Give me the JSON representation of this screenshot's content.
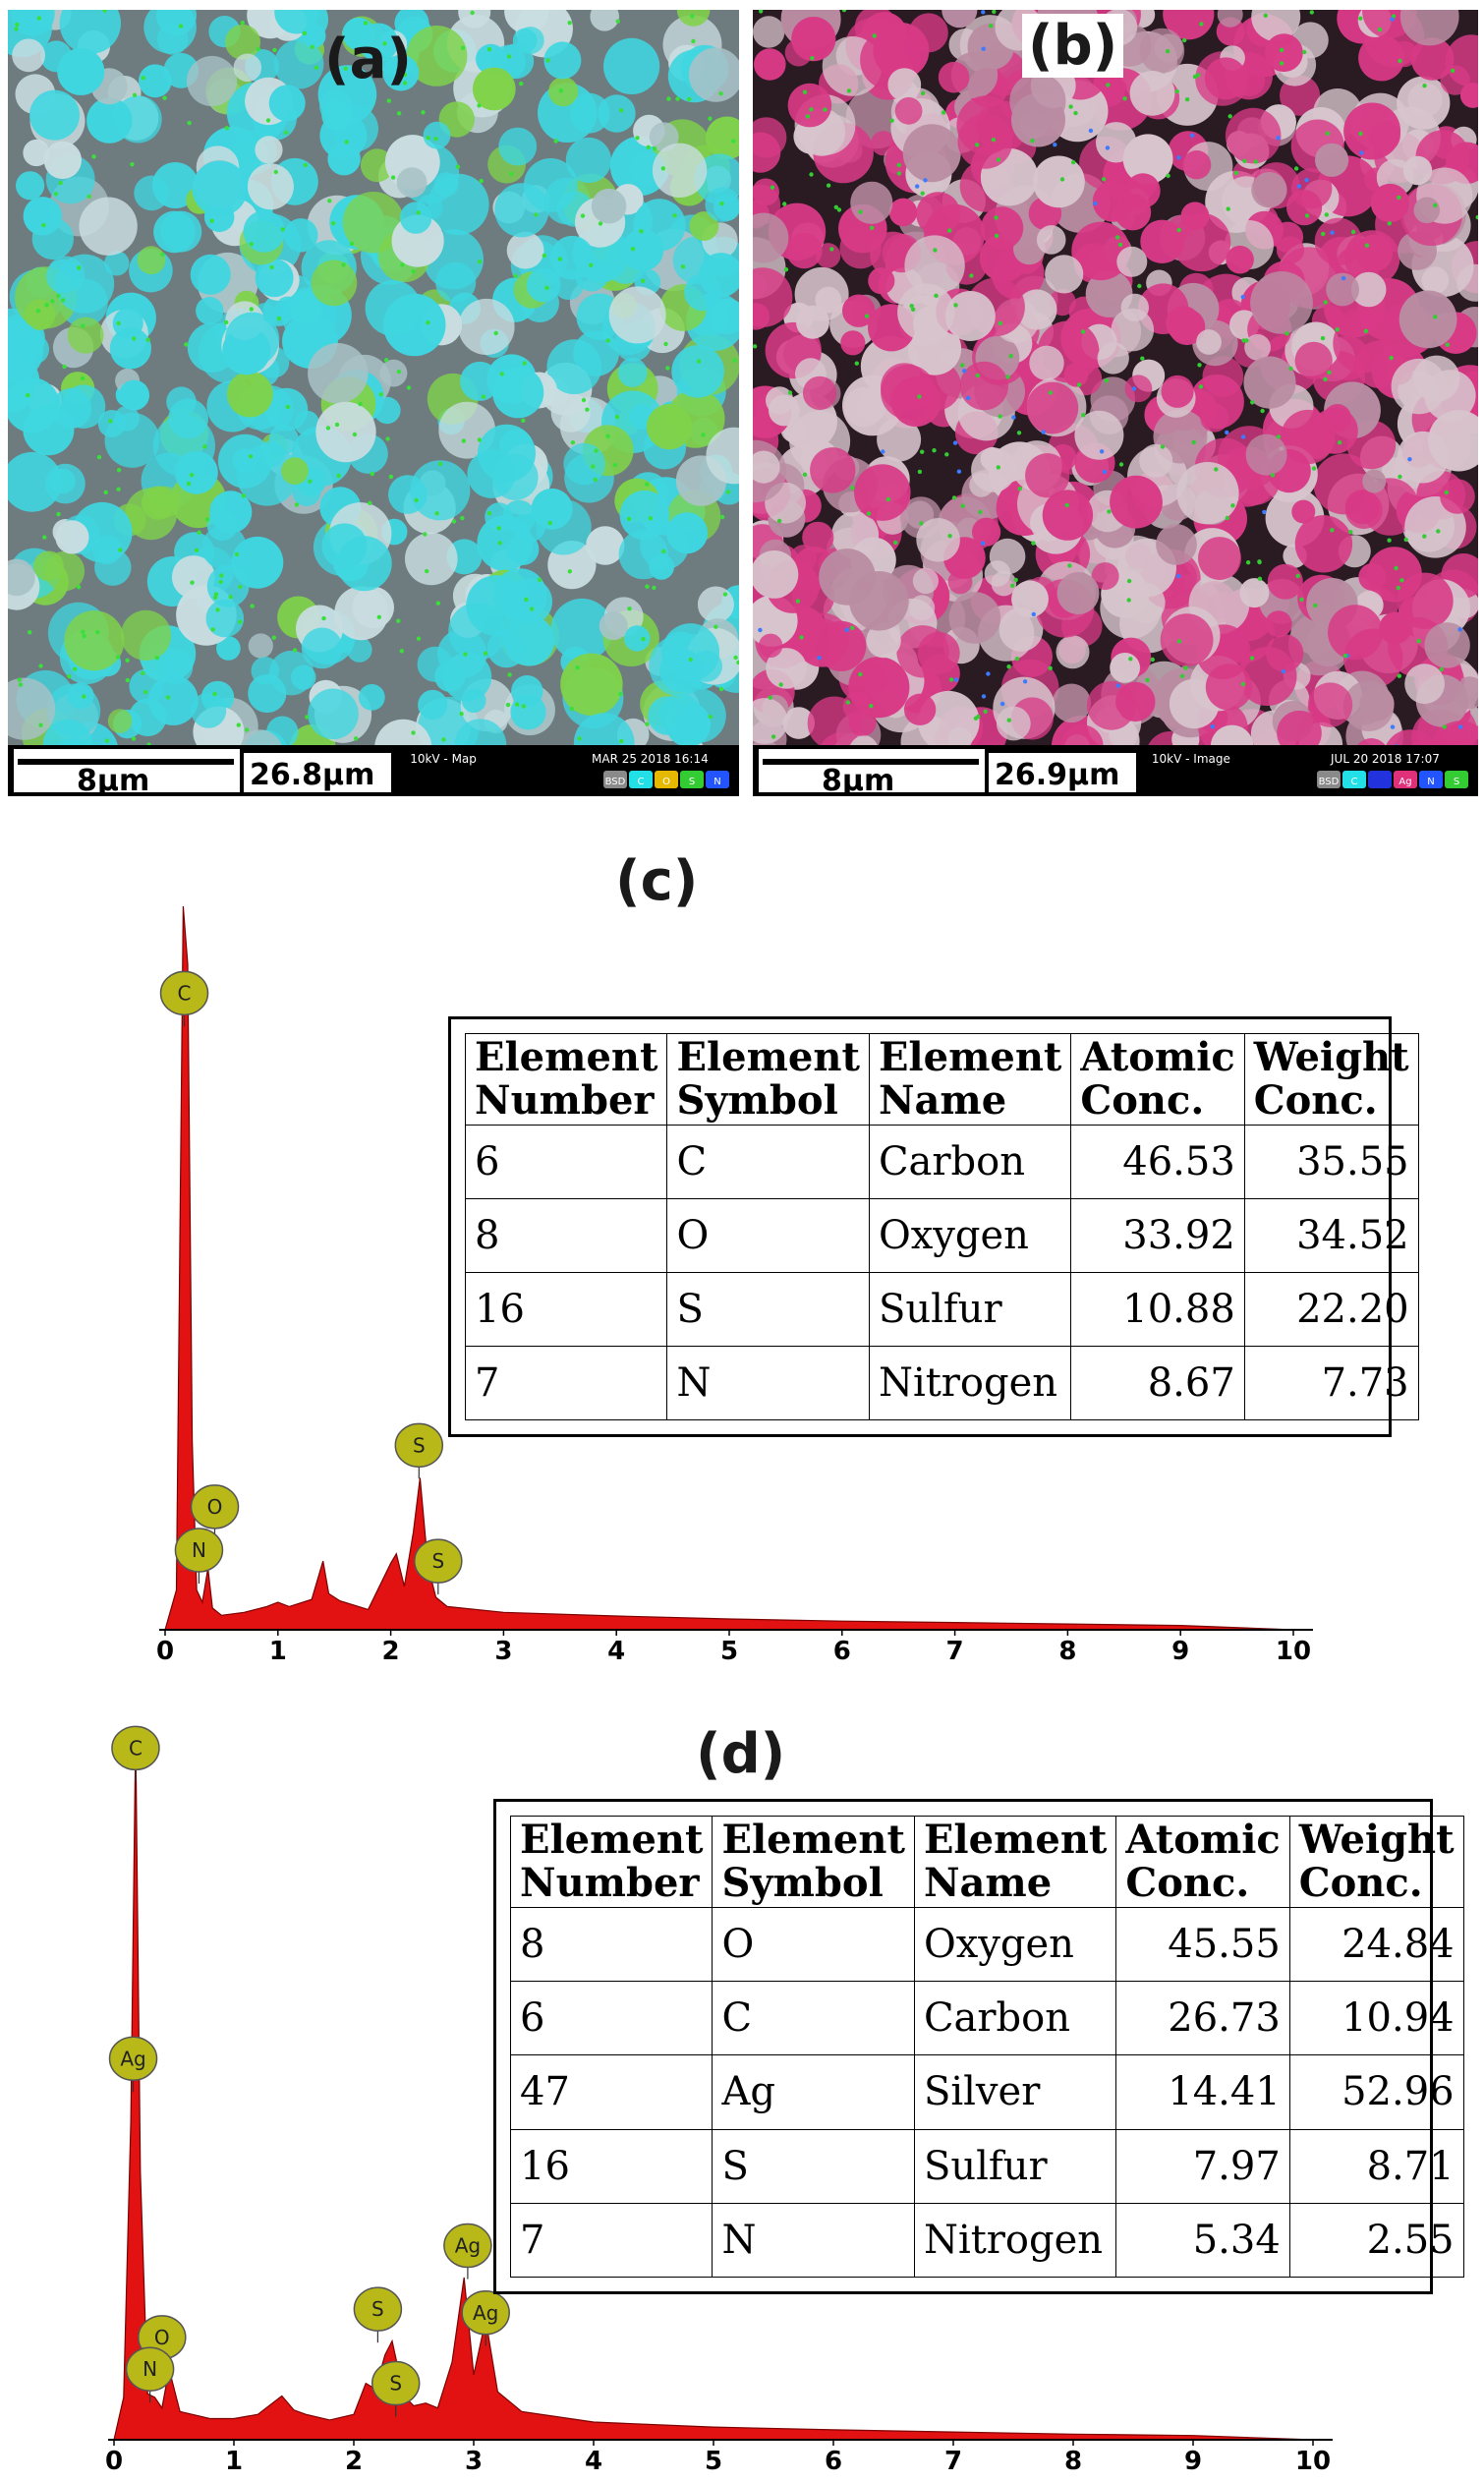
{
  "panels": {
    "a": {
      "letter": "(a)",
      "scale_bar": "8µm",
      "field_width": "26.8µm",
      "mode": "10kV - Map",
      "date": "MAR 25 2018 16:14",
      "legend": [
        "BSD",
        "C",
        "O",
        "S",
        "N"
      ],
      "legend_colors": [
        "#8a8a8a",
        "#22e0e6",
        "#e6b800",
        "#33cc33",
        "#2255ff"
      ]
    },
    "b": {
      "letter": "(b)",
      "scale_bar": "8µm",
      "field_width": "26.9µm",
      "mode": "10kV - Image",
      "date": "JUL 20 2018 17:07",
      "legend": [
        "BSD",
        "C",
        "",
        "Ag",
        "N",
        "S"
      ],
      "legend_colors": [
        "#8a8a8a",
        "#22e0e6",
        "#2233dd",
        "#e0307a",
        "#2255ff",
        "#33cc33"
      ]
    },
    "c": {
      "letter": "(c)"
    },
    "d": {
      "letter": "(d)"
    }
  },
  "colors": {
    "spectrum_fill": "#e31212",
    "peak_marker": "#b8b818",
    "map_a_cyan": "#3fd6e0",
    "map_b_magenta": "#d83a86"
  },
  "chart_data": [
    {
      "type": "area",
      "panel": "(c)",
      "xlim": [
        0,
        10
      ],
      "x_ticks": [
        0,
        1,
        2,
        3,
        4,
        5,
        6,
        7,
        8,
        9,
        10
      ],
      "x": [
        0,
        0.1,
        0.16,
        0.2,
        0.24,
        0.28,
        0.33,
        0.38,
        0.42,
        0.5,
        0.7,
        0.9,
        1.0,
        1.1,
        1.3,
        1.4,
        1.45,
        1.55,
        1.8,
        2.0,
        2.05,
        2.12,
        2.2,
        2.26,
        2.33,
        2.4,
        2.5,
        3.0,
        4.0,
        5.0,
        6.0,
        7.0,
        8.0,
        9.0,
        10.0
      ],
      "y": [
        0,
        55,
        1000,
        920,
        260,
        55,
        38,
        85,
        30,
        20,
        24,
        32,
        38,
        32,
        42,
        95,
        50,
        40,
        28,
        92,
        105,
        60,
        135,
        210,
        88,
        45,
        32,
        24,
        19,
        15,
        12,
        10,
        8,
        6,
        0
      ],
      "peak_labels": [
        {
          "label": "C",
          "x": 0.17,
          "y": 880
        },
        {
          "label": "O",
          "x": 0.44,
          "y": 170
        },
        {
          "label": "N",
          "x": 0.3,
          "y": 110
        },
        {
          "label": "S",
          "x": 2.25,
          "y": 255
        },
        {
          "label": "S",
          "x": 2.42,
          "y": 95
        }
      ],
      "table": {
        "headers": [
          [
            "Element",
            "Number"
          ],
          [
            "Element",
            "Symbol"
          ],
          [
            "Element",
            "Name"
          ],
          [
            "Atomic",
            "Conc."
          ],
          [
            "Weight",
            "Conc."
          ]
        ],
        "rows": [
          [
            "6",
            "C",
            "Carbon",
            "46.53",
            "35.55"
          ],
          [
            "8",
            "O",
            "Oxygen",
            "33.92",
            "34.52"
          ],
          [
            "16",
            "S",
            "Sulfur",
            "10.88",
            "22.20"
          ],
          [
            "7",
            "N",
            "Nitrogen",
            "8.67",
            "7.73"
          ]
        ]
      }
    },
    {
      "type": "area",
      "panel": "(d)",
      "xlim": [
        0,
        10
      ],
      "x_ticks": [
        0,
        1,
        2,
        3,
        4,
        5,
        6,
        7,
        8,
        9,
        10
      ],
      "x": [
        0,
        0.08,
        0.14,
        0.18,
        0.22,
        0.28,
        0.34,
        0.4,
        0.46,
        0.55,
        0.8,
        1.0,
        1.2,
        1.4,
        1.5,
        1.6,
        1.8,
        2.0,
        2.1,
        2.18,
        2.26,
        2.32,
        2.42,
        2.5,
        2.6,
        2.7,
        2.82,
        2.92,
        3.0,
        3.1,
        3.2,
        3.4,
        4.0,
        5.0,
        6.0,
        7.0,
        8.0,
        9.0,
        10.0
      ],
      "y": [
        0,
        60,
        450,
        1000,
        380,
        65,
        60,
        45,
        100,
        40,
        30,
        30,
        36,
        62,
        42,
        36,
        28,
        36,
        80,
        72,
        120,
        140,
        62,
        48,
        52,
        45,
        110,
        230,
        92,
        170,
        68,
        40,
        25,
        18,
        14,
        11,
        8,
        6,
        0
      ],
      "peak_labels": [
        {
          "label": "C",
          "x": 0.18,
          "y": 980
        },
        {
          "label": "Ag",
          "x": 0.16,
          "y": 540
        },
        {
          "label": "O",
          "x": 0.4,
          "y": 145
        },
        {
          "label": "N",
          "x": 0.3,
          "y": 100
        },
        {
          "label": "S",
          "x": 2.2,
          "y": 185
        },
        {
          "label": "S",
          "x": 2.35,
          "y": 80
        },
        {
          "label": "Ag",
          "x": 2.95,
          "y": 275
        },
        {
          "label": "Ag",
          "x": 3.1,
          "y": 180
        }
      ],
      "table": {
        "headers": [
          [
            "Element",
            "Number"
          ],
          [
            "Element",
            "Symbol"
          ],
          [
            "Element",
            "Name"
          ],
          [
            "Atomic",
            "Conc."
          ],
          [
            "Weight",
            "Conc."
          ]
        ],
        "rows": [
          [
            "8",
            "O",
            "Oxygen",
            "45.55",
            "24.84"
          ],
          [
            "6",
            "C",
            "Carbon",
            "26.73",
            "10.94"
          ],
          [
            "47",
            "Ag",
            "Silver",
            "14.41",
            "52.96"
          ],
          [
            "16",
            "S",
            "Sulfur",
            "7.97",
            "8.71"
          ],
          [
            "7",
            "N",
            "Nitrogen",
            "5.34",
            "2.55"
          ]
        ]
      }
    }
  ]
}
